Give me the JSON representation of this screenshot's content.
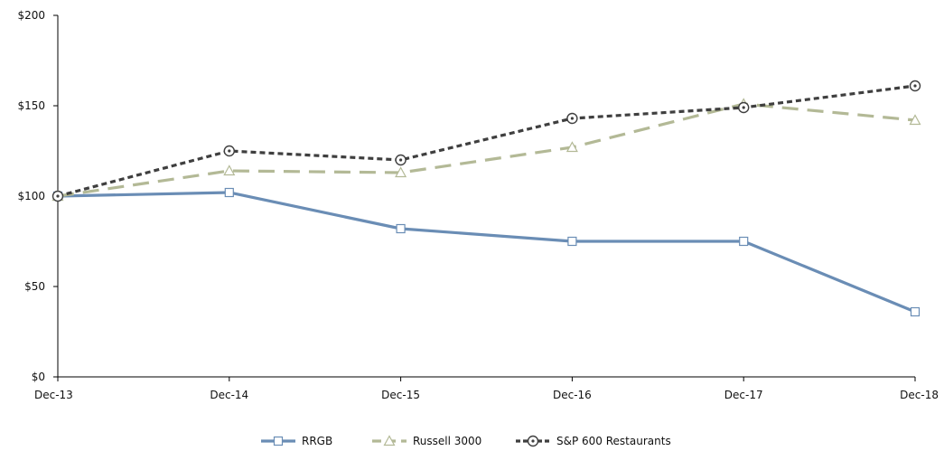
{
  "chart_data": {
    "type": "line",
    "categories": [
      "Dec-13",
      "Dec-14",
      "Dec-15",
      "Dec-16",
      "Dec-17",
      "Dec-18"
    ],
    "series": [
      {
        "name": "RRGB",
        "values": [
          100,
          102,
          82,
          75,
          75,
          36
        ],
        "color": "#6a8db5",
        "marker": "square",
        "dash": "solid"
      },
      {
        "name": "Russell 3000",
        "values": [
          100,
          114,
          113,
          127,
          151,
          142
        ],
        "color": "#b3b996",
        "marker": "triangle",
        "dash": "dashed"
      },
      {
        "name": "S&P 600 Restaurants",
        "values": [
          100,
          125,
          120,
          143,
          149,
          161
        ],
        "color": "#3f3f3f",
        "marker": "circle",
        "dash": "dotted"
      }
    ],
    "ylim": [
      0,
      200
    ],
    "yticks": [
      0,
      50,
      100,
      150,
      200
    ],
    "ytick_labels": [
      "$0",
      "$50",
      "$100",
      "$150",
      "$200"
    ],
    "grid": false,
    "legend_position": "bottom-center"
  }
}
